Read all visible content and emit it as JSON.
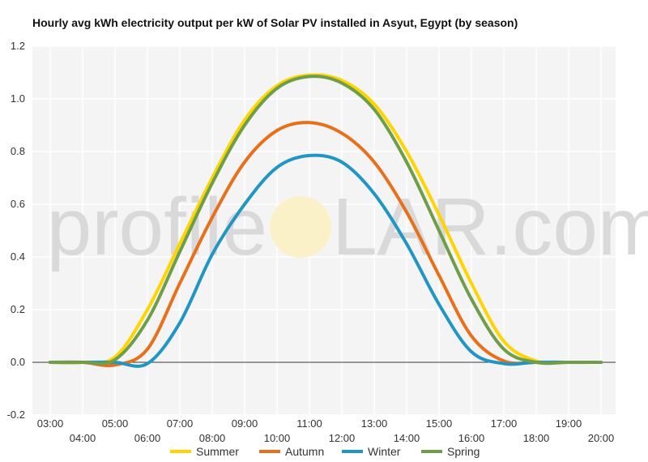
{
  "chart_data": {
    "type": "line",
    "title": "Hourly avg kWh electricity output per kW of Solar PV installed in Asyut, Egypt (by season)",
    "xlabel": "",
    "ylabel": "",
    "x": [
      "03:00",
      "04:00",
      "05:00",
      "06:00",
      "07:00",
      "08:00",
      "09:00",
      "10:00",
      "11:00",
      "12:00",
      "13:00",
      "14:00",
      "15:00",
      "16:00",
      "17:00",
      "18:00",
      "19:00",
      "20:00"
    ],
    "x_ticks_upper": [
      "03:00",
      "05:00",
      "07:00",
      "09:00",
      "11:00",
      "13:00",
      "15:00",
      "17:00",
      "19:00"
    ],
    "x_ticks_lower": [
      "04:00",
      "06:00",
      "08:00",
      "10:00",
      "12:00",
      "14:00",
      "16:00",
      "18:00",
      "20:00"
    ],
    "ylim": [
      -0.2,
      1.2
    ],
    "y_ticks": [
      "-0.2",
      "0.0",
      "0.2",
      "0.4",
      "0.6",
      "0.8",
      "1.0",
      "1.2"
    ],
    "grid": true,
    "legend_position": "bottom",
    "series": [
      {
        "name": "Summer",
        "color": "#ffd400",
        "values": [
          0,
          0,
          0.02,
          0.2,
          0.45,
          0.7,
          0.92,
          1.05,
          1.09,
          1.07,
          0.98,
          0.8,
          0.56,
          0.3,
          0.08,
          0.005,
          0,
          0
        ]
      },
      {
        "name": "Autumn",
        "color": "#e8701a",
        "values": [
          0,
          0,
          -0.01,
          0.05,
          0.3,
          0.55,
          0.76,
          0.88,
          0.91,
          0.87,
          0.76,
          0.57,
          0.33,
          0.1,
          0.005,
          0,
          0,
          0
        ]
      },
      {
        "name": "Winter",
        "color": "#2196c4",
        "values": [
          0,
          0,
          0,
          -0.005,
          0.15,
          0.41,
          0.6,
          0.74,
          0.785,
          0.76,
          0.64,
          0.45,
          0.22,
          0.04,
          -0.005,
          0,
          0,
          0
        ]
      },
      {
        "name": "Spring",
        "color": "#6e9e4a",
        "values": [
          0,
          0,
          0.01,
          0.16,
          0.42,
          0.68,
          0.9,
          1.04,
          1.085,
          1.06,
          0.96,
          0.76,
          0.5,
          0.24,
          0.05,
          0,
          0,
          0
        ]
      }
    ]
  },
  "watermark": {
    "left": "profile",
    "right": "LAR.com"
  }
}
